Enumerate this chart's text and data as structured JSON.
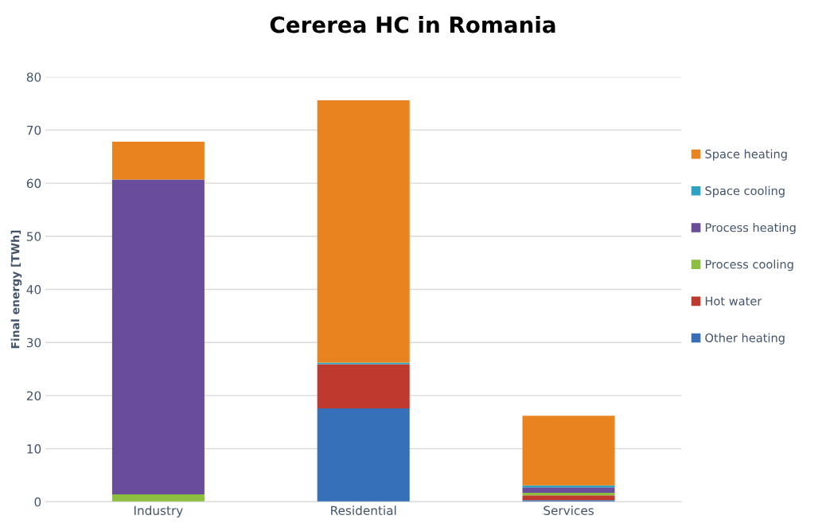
{
  "chart_data": {
    "type": "bar",
    "title": "Cererea HC in Romania",
    "ylabel": "Final energy [TWh]",
    "categories": [
      "Industry",
      "Residential",
      "Services"
    ],
    "stacked": true,
    "series": [
      {
        "name": "Other heating",
        "color": "#3570b8",
        "values": [
          0,
          17.6,
          0.3
        ]
      },
      {
        "name": "Hot water",
        "color": "#c0392f",
        "values": [
          0,
          8.3,
          0.9
        ]
      },
      {
        "name": "Process cooling",
        "color": "#8cbf3f",
        "values": [
          1.4,
          0,
          0.5
        ]
      },
      {
        "name": "Process heating",
        "color": "#6a4c9c",
        "values": [
          59.3,
          0,
          1.0
        ]
      },
      {
        "name": "Space cooling",
        "color": "#2aa3c4",
        "values": [
          0,
          0.3,
          0.4
        ]
      },
      {
        "name": "Space heating",
        "color": "#e8831f",
        "values": [
          7.1,
          49.4,
          13.1
        ]
      }
    ],
    "ylim": [
      0,
      80
    ],
    "yticks": [
      0,
      10,
      20,
      30,
      40,
      50,
      60,
      70,
      80
    ],
    "grid": "y",
    "legend": "right"
  }
}
